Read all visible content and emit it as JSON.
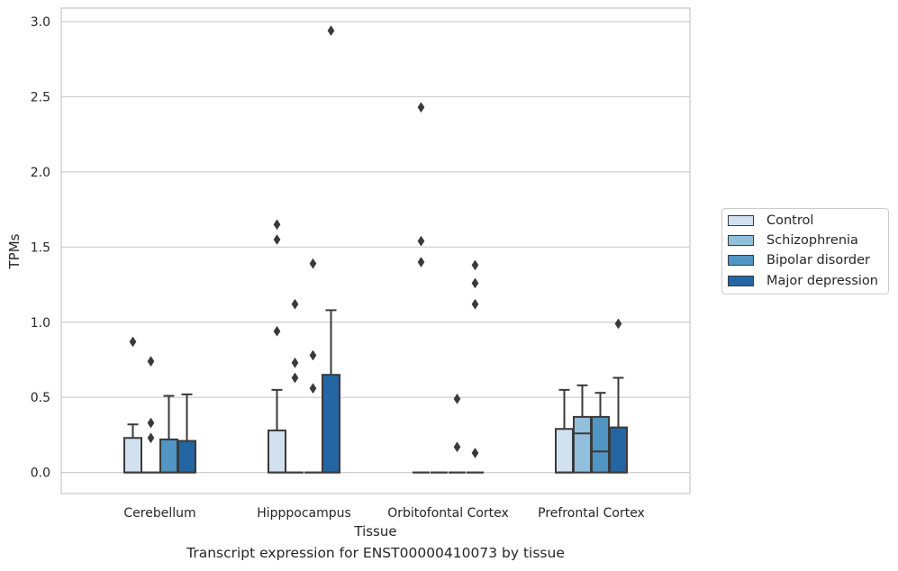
{
  "chart_data": {
    "type": "box",
    "xlabel": "Tissue",
    "ylabel": "TPMs",
    "ylim": [
      -0.14,
      3.09
    ],
    "yticks": [
      "0.0",
      "0.5",
      "1.0",
      "1.5",
      "2.0",
      "2.5",
      "3.0"
    ],
    "ytick_values": [
      0,
      0.5,
      1.0,
      1.5,
      2.0,
      2.5,
      3.0
    ],
    "grid": true,
    "legend_position": "right",
    "categories": [
      "Cerebellum",
      "Hipppocampus",
      "Orbitofontal Cortex",
      "Prefrontal Cortex"
    ],
    "series": [
      {
        "name": "Control",
        "color": "#d1e1f0",
        "boxes": [
          {
            "q1": 0,
            "median": 0,
            "q3": 0.23,
            "whisker_low": 0,
            "whisker_high": 0.32,
            "outliers": [
              0.87
            ]
          },
          {
            "q1": 0,
            "median": 0,
            "q3": 0.28,
            "whisker_low": 0,
            "whisker_high": 0.55,
            "outliers": [
              0.94,
              1.55,
              1.65
            ]
          },
          {
            "q1": 0,
            "median": 0,
            "q3": 0,
            "whisker_low": 0,
            "whisker_high": 0,
            "outliers": [
              1.4,
              1.54,
              2.43
            ]
          },
          {
            "q1": 0,
            "median": 0,
            "q3": 0.29,
            "whisker_low": 0,
            "whisker_high": 0.55,
            "outliers": []
          }
        ]
      },
      {
        "name": "Schizophrenia",
        "color": "#93bfdb",
        "boxes": [
          {
            "q1": 0,
            "median": 0,
            "q3": 0,
            "whisker_low": 0,
            "whisker_high": 0,
            "outliers": [
              0.23,
              0.33,
              0.74
            ]
          },
          {
            "q1": 0,
            "median": 0,
            "q3": 0,
            "whisker_low": 0,
            "whisker_high": 0,
            "outliers": [
              0.63,
              0.73,
              1.12
            ]
          },
          {
            "q1": 0,
            "median": 0,
            "q3": 0,
            "whisker_low": 0,
            "whisker_high": 0,
            "outliers": []
          },
          {
            "q1": 0,
            "median": 0.26,
            "q3": 0.37,
            "whisker_low": 0,
            "whisker_high": 0.58,
            "outliers": []
          }
        ]
      },
      {
        "name": "Bipolar disorder",
        "color": "#5195c3",
        "boxes": [
          {
            "q1": 0,
            "median": 0,
            "q3": 0.22,
            "whisker_low": 0,
            "whisker_high": 0.51,
            "outliers": []
          },
          {
            "q1": 0,
            "median": 0,
            "q3": 0,
            "whisker_low": 0,
            "whisker_high": 0,
            "outliers": [
              0.56,
              0.78,
              1.39
            ]
          },
          {
            "q1": 0,
            "median": 0,
            "q3": 0,
            "whisker_low": 0,
            "whisker_high": 0,
            "outliers": [
              0.17,
              0.49
            ]
          },
          {
            "q1": 0,
            "median": 0.14,
            "q3": 0.37,
            "whisker_low": 0,
            "whisker_high": 0.53,
            "outliers": []
          }
        ]
      },
      {
        "name": "Major depression",
        "color": "#2466a3",
        "boxes": [
          {
            "q1": 0,
            "median": 0,
            "q3": 0.21,
            "whisker_low": 0,
            "whisker_high": 0.52,
            "outliers": []
          },
          {
            "q1": 0,
            "median": 0,
            "q3": 0.65,
            "whisker_low": 0,
            "whisker_high": 1.08,
            "outliers": [
              2.94
            ]
          },
          {
            "q1": 0,
            "median": 0,
            "q3": 0,
            "whisker_low": 0,
            "whisker_high": 0,
            "outliers": [
              0.13,
              1.12,
              1.26,
              1.38
            ]
          },
          {
            "q1": 0,
            "median": 0,
            "q3": 0.3,
            "whisker_low": 0,
            "whisker_high": 0.63,
            "outliers": [
              0.99
            ]
          }
        ]
      }
    ]
  },
  "caption": "Transcript expression for ENST00000410073 by tissue"
}
